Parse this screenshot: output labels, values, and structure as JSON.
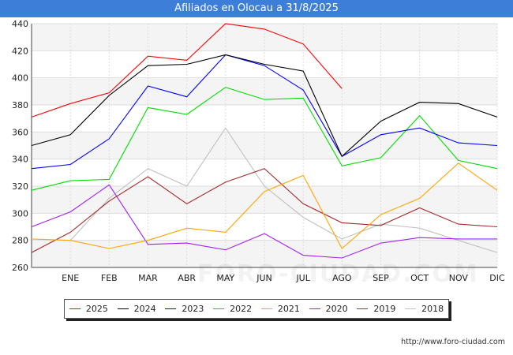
{
  "header": {
    "title": "Afiliados en Olocau a 31/8/2025"
  },
  "footer": {
    "url": "http://www.foro-ciudad.com"
  },
  "watermark": {
    "text": "FORO-CIUDAD.COM"
  },
  "colors": {
    "title_bar": "#3d7fd8",
    "plot_band": "#f4f4f4",
    "grid": "#dddddd"
  },
  "chart_data": {
    "type": "line",
    "title": "Afiliados en Olocau a 31/8/2025",
    "categories": [
      "",
      "ENE",
      "FEB",
      "MAR",
      "ABR",
      "MAY",
      "JUN",
      "JUL",
      "AGO",
      "SEP",
      "OCT",
      "NOV",
      "DIC"
    ],
    "ylim": [
      260,
      440
    ],
    "yticks": [
      260,
      280,
      300,
      320,
      340,
      360,
      380,
      400,
      420,
      440
    ],
    "grid": true,
    "legend_position": "bottom",
    "series": [
      {
        "name": "2025",
        "color": "#ff0000",
        "values": [
          371,
          381,
          389,
          416,
          413,
          440,
          436,
          425,
          392,
          null,
          null,
          null,
          null
        ]
      },
      {
        "name": "2024",
        "color": "#000000",
        "values": [
          350,
          358,
          387,
          409,
          410,
          417,
          410,
          405,
          342,
          368,
          382,
          381,
          371
        ]
      },
      {
        "name": "2023",
        "color": "#0000ff",
        "values": [
          333,
          336,
          355,
          394,
          386,
          417,
          409,
          391,
          342,
          358,
          363,
          352,
          350
        ]
      },
      {
        "name": "2022",
        "color": "#00dd00",
        "values": [
          317,
          324,
          325,
          378,
          373,
          393,
          384,
          385,
          335,
          341,
          372,
          339,
          333
        ]
      },
      {
        "name": "2021",
        "color": "#ffa500",
        "values": [
          281,
          280,
          274,
          280,
          289,
          286,
          316,
          328,
          274,
          299,
          311,
          337,
          317
        ]
      },
      {
        "name": "2020",
        "color": "#a020f0",
        "values": [
          290,
          301,
          321,
          277,
          278,
          273,
          285,
          269,
          267,
          278,
          282,
          281,
          281
        ]
      },
      {
        "name": "2019",
        "color": "#a52a2a",
        "values": [
          271,
          286,
          309,
          327,
          307,
          323,
          333,
          307,
          293,
          291,
          304,
          292,
          290
        ]
      },
      {
        "name": "2018",
        "color": "#c0c0c0",
        "values": [
          null,
          280,
          311,
          333,
          320,
          363,
          320,
          297,
          281,
          292,
          289,
          280,
          271
        ]
      }
    ]
  }
}
